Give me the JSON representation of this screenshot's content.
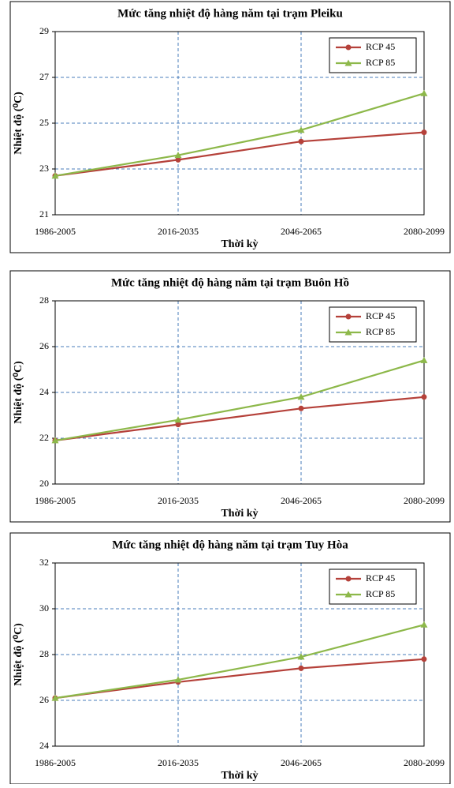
{
  "chart_data": [
    {
      "type": "line",
      "title": "Mức tăng nhiệt độ hàng năm tại trạm Pleiku",
      "x_label": "Thời kỳ",
      "y_label": "Nhiệt độ (⁰C)",
      "categories": [
        "1986-2005",
        "2016-2035",
        "2046-2065",
        "2080-2099"
      ],
      "series": [
        {
          "name": "RCP 45",
          "color": "#b5413a",
          "values": [
            22.7,
            23.4,
            24.2,
            24.6
          ]
        },
        {
          "name": "RCP 85",
          "color": "#8db84a",
          "values": [
            22.7,
            23.6,
            24.7,
            26.3
          ]
        }
      ],
      "ylim": [
        21,
        29
      ],
      "yticks": [
        21,
        23,
        25,
        27,
        29
      ],
      "grid": true,
      "legend": "upper right"
    },
    {
      "type": "line",
      "title": "Mức tăng nhiệt độ hàng năm tại trạm Buôn Hồ",
      "x_label": "Thời kỳ",
      "y_label": "Nhiệt độ (⁰C)",
      "categories": [
        "1986-2005",
        "2016-2035",
        "2046-2065",
        "2080-2099"
      ],
      "series": [
        {
          "name": "RCP 45",
          "color": "#b5413a",
          "values": [
            21.9,
            22.6,
            23.3,
            23.8
          ]
        },
        {
          "name": "RCP 85",
          "color": "#8db84a",
          "values": [
            21.9,
            22.8,
            23.8,
            25.4
          ]
        }
      ],
      "ylim": [
        20,
        28
      ],
      "yticks": [
        20,
        22,
        24,
        26,
        28
      ],
      "grid": true,
      "legend": "upper right"
    },
    {
      "type": "line",
      "title": "Mức tăng nhiệt độ hàng năm tại trạm Tuy Hòa",
      "x_label": "Thời kỳ",
      "y_label": "Nhiệt độ (⁰C)",
      "categories": [
        "1986-2005",
        "2016-2035",
        "2046-2065",
        "2080-2099"
      ],
      "series": [
        {
          "name": "RCP 45",
          "color": "#b5413a",
          "values": [
            26.1,
            26.8,
            27.4,
            27.8
          ]
        },
        {
          "name": "RCP 85",
          "color": "#8db84a",
          "values": [
            26.1,
            26.9,
            27.9,
            29.3
          ]
        }
      ],
      "ylim": [
        24,
        32
      ],
      "yticks": [
        24,
        26,
        28,
        30,
        32
      ],
      "grid": true,
      "legend": "upper right"
    }
  ]
}
